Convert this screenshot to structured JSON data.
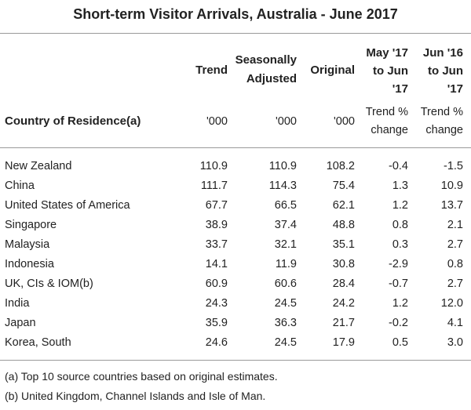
{
  "title": "Short-term Visitor Arrivals, Australia - June 2017",
  "header": {
    "country_label": "Country of Residence(a)",
    "trend": "Trend",
    "sa_line1": "Seasonally",
    "sa_line2": "Adjusted",
    "original": "Original",
    "may_line1": "May '17",
    "may_line2": "to Jun",
    "may_line3": "'17",
    "jun_line1": "Jun '16",
    "jun_line2": "to Jun",
    "jun_line3": "'17",
    "unit_trend": "'000",
    "unit_sa": "'000",
    "unit_orig": "'000",
    "pct_may_line1": "Trend %",
    "pct_may_line2": "change",
    "pct_jun_line1": "Trend %",
    "pct_jun_line2": "change"
  },
  "rows": [
    {
      "country": "New Zealand",
      "trend": "110.9",
      "sa": "110.9",
      "orig": "108.2",
      "may": "-0.4",
      "jun": "-1.5"
    },
    {
      "country": "China",
      "trend": "111.7",
      "sa": "114.3",
      "orig": "75.4",
      "may": "1.3",
      "jun": "10.9"
    },
    {
      "country": "United States of America",
      "trend": "67.7",
      "sa": "66.5",
      "orig": "62.1",
      "may": "1.2",
      "jun": "13.7"
    },
    {
      "country": "Singapore",
      "trend": "38.9",
      "sa": "37.4",
      "orig": "48.8",
      "may": "0.8",
      "jun": "2.1"
    },
    {
      "country": "Malaysia",
      "trend": "33.7",
      "sa": "32.1",
      "orig": "35.1",
      "may": "0.3",
      "jun": "2.7"
    },
    {
      "country": "Indonesia",
      "trend": "14.1",
      "sa": "11.9",
      "orig": "30.8",
      "may": "-2.9",
      "jun": "0.8"
    },
    {
      "country": "UK, CIs & IOM(b)",
      "trend": "60.9",
      "sa": "60.6",
      "orig": "28.4",
      "may": "-0.7",
      "jun": "2.7"
    },
    {
      "country": "India",
      "trend": "24.3",
      "sa": "24.5",
      "orig": "24.2",
      "may": "1.2",
      "jun": "12.0"
    },
    {
      "country": "Japan",
      "trend": "35.9",
      "sa": "36.3",
      "orig": "21.7",
      "may": "-0.2",
      "jun": "4.1"
    },
    {
      "country": "Korea, South",
      "trend": "24.6",
      "sa": "24.5",
      "orig": "17.9",
      "may": "0.5",
      "jun": "3.0"
    }
  ],
  "notes": {
    "a": "(a) Top 10 source countries based on original estimates.",
    "b": "(b) United Kingdom, Channel Islands and Isle of Man."
  }
}
